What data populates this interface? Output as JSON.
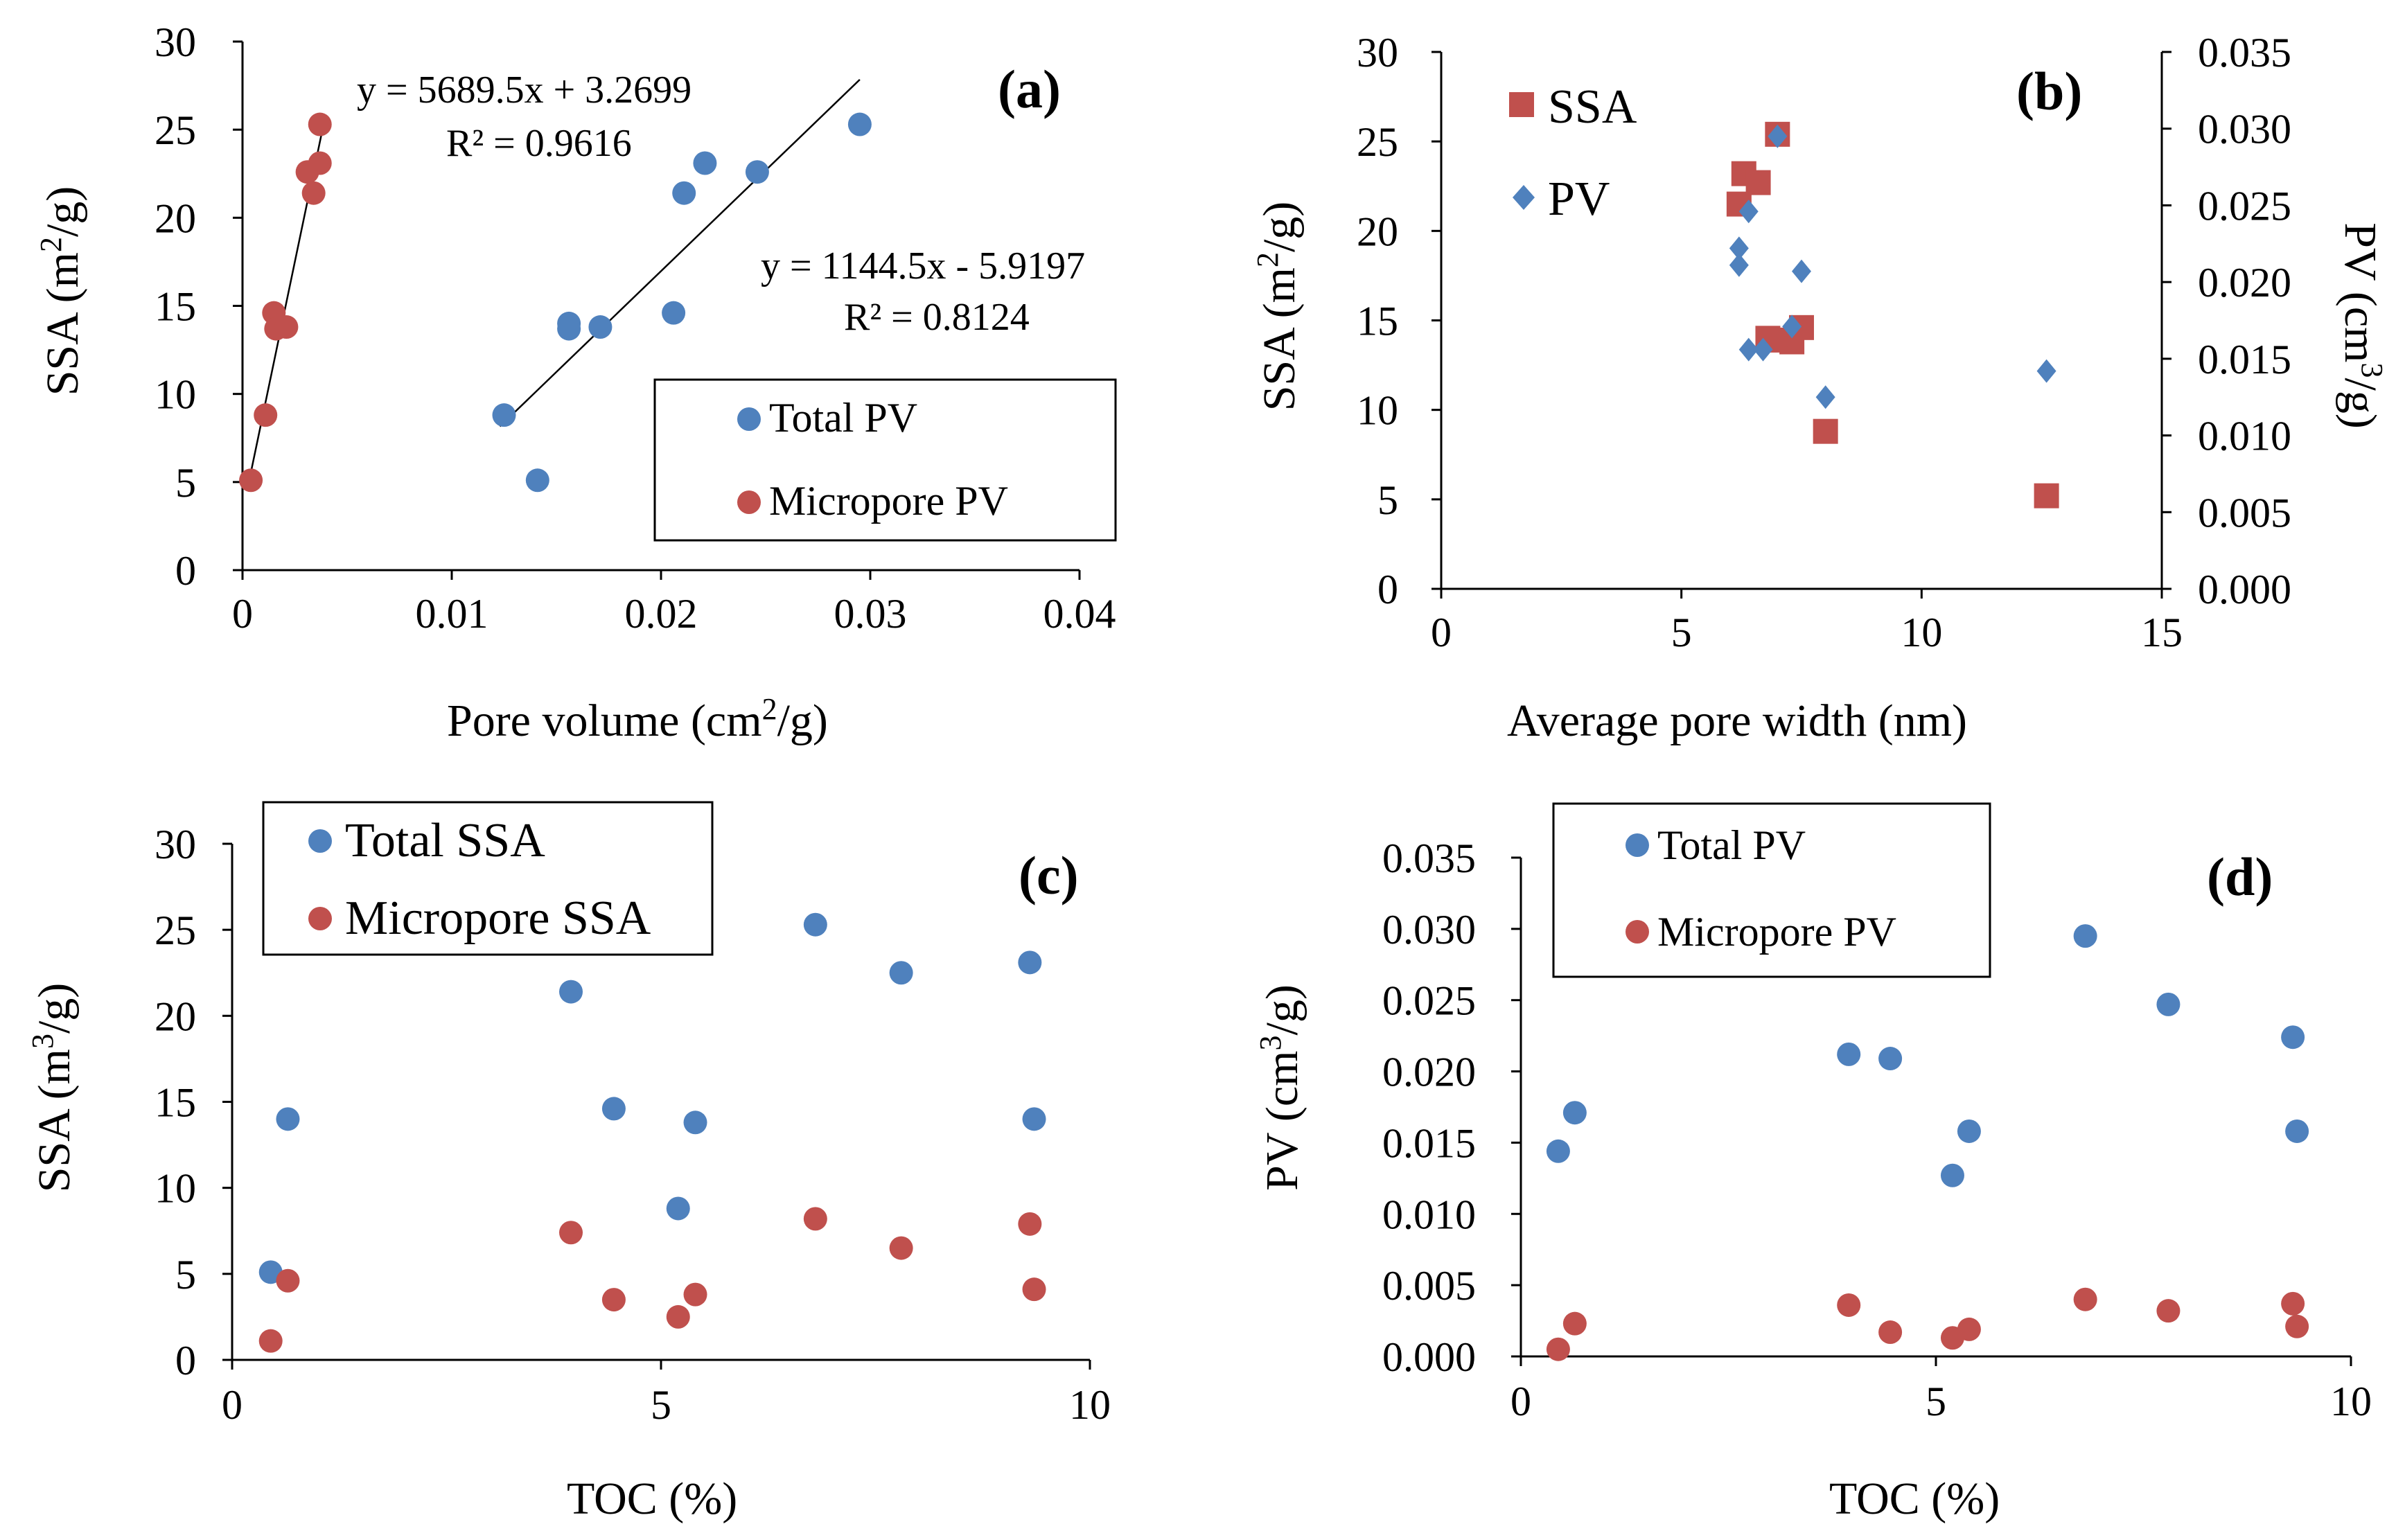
{
  "chart_data": [
    {
      "panel": "a",
      "type": "scatter",
      "panel_label": "(a)",
      "xlabel": "Pore volume  (cm",
      "xlabel_sup": "2",
      "xlabel_tail": "/g)",
      "ylabel": "SSA  (m",
      "ylabel_sup": "2",
      "ylabel_tail": "/g)",
      "xlim": [
        0,
        0.04
      ],
      "ylim": [
        0,
        30
      ],
      "xticks": [
        "0",
        "0.01",
        "0.02",
        "0.03",
        "0.04"
      ],
      "yticks": [
        "0",
        "5",
        "10",
        "15",
        "20",
        "25",
        "30"
      ],
      "series": [
        {
          "name": "Total PV",
          "color": "#4f81bd",
          "x": [
            0.0125,
            0.0141,
            0.0156,
            0.0156,
            0.0171,
            0.0206,
            0.0211,
            0.0221,
            0.0246,
            0.0295
          ],
          "y": [
            8.8,
            5.1,
            14.0,
            13.7,
            13.8,
            14.6,
            21.4,
            23.1,
            22.6,
            25.3
          ]
        },
        {
          "name": "Micropore PV",
          "color": "#c0504d",
          "x": [
            0.0004,
            0.0011,
            0.0015,
            0.0016,
            0.0021,
            0.0031,
            0.0034,
            0.0037,
            0.0037
          ],
          "y": [
            5.1,
            8.8,
            14.6,
            13.7,
            13.8,
            22.6,
            21.4,
            23.1,
            25.3
          ]
        }
      ],
      "trendlines": [
        {
          "series": "Micropore PV",
          "slope": 5689.5,
          "intercept": 3.2699,
          "x_range": [
            0.0003,
            0.0038
          ],
          "equation": "y = 5689.5x + 3.2699",
          "r2": "R² = 0.9616"
        },
        {
          "series": "Total PV",
          "slope": 1144.5,
          "intercept": -5.9197,
          "x_range": [
            0.0123,
            0.0295
          ],
          "equation": "y = 1144.5x - 5.9197",
          "r2": "R² = 0.8124"
        }
      ],
      "legend": [
        "Total PV",
        "Micropore PV"
      ]
    },
    {
      "panel": "b",
      "type": "scatter",
      "panel_label": "(b)",
      "xlabel": "Average  pore width (nm)",
      "ylabel": "SSA  (m",
      "ylabel_sup": "2",
      "ylabel_tail": "/g)",
      "y2label": "PV (cm",
      "y2label_sup": "3",
      "y2label_tail": "/g)",
      "xlim": [
        0,
        15
      ],
      "ylim": [
        0,
        30
      ],
      "y2lim": [
        0,
        0.035
      ],
      "xticks": [
        "0",
        "5",
        "10",
        "15"
      ],
      "yticks": [
        "0",
        "5",
        "10",
        "15",
        "20",
        "25",
        "30"
      ],
      "y2ticks": [
        "0.000",
        "0.005",
        "0.010",
        "0.015",
        "0.020",
        "0.025",
        "0.030",
        "0.035"
      ],
      "series": [
        {
          "name": "SSA",
          "axis": "left",
          "color": "#c0504d",
          "marker": "square",
          "x": [
            6.2,
            6.3,
            6.6,
            6.9,
            7.0,
            7.3,
            7.5,
            8.0,
            12.6,
            6.8
          ],
          "y": [
            21.5,
            23.2,
            22.7,
            13.9,
            25.4,
            13.8,
            14.6,
            8.8,
            5.2,
            14.0
          ]
        },
        {
          "name": "PV",
          "axis": "right",
          "color": "#4f81bd",
          "marker": "diamond",
          "x": [
            6.2,
            6.2,
            6.4,
            6.4,
            6.7,
            7.0,
            7.3,
            7.5,
            8.0,
            12.6
          ],
          "y": [
            0.0211,
            0.0222,
            0.0246,
            0.0156,
            0.0156,
            0.0295,
            0.0171,
            0.0207,
            0.0125,
            0.0142
          ]
        }
      ],
      "legend": [
        "SSA",
        "PV"
      ]
    },
    {
      "panel": "c",
      "type": "scatter",
      "panel_label": "(c)",
      "xlabel": "TOC (%)",
      "ylabel": "SSA  (m",
      "ylabel_sup": "3",
      "ylabel_tail": "/g)",
      "xlim": [
        0,
        10
      ],
      "ylim": [
        0,
        30
      ],
      "xticks": [
        "0",
        "5",
        "10"
      ],
      "yticks": [
        "0",
        "5",
        "10",
        "15",
        "20",
        "25",
        "30"
      ],
      "series": [
        {
          "name": "Total SSA",
          "color": "#4f81bd",
          "x": [
            0.45,
            0.65,
            3.95,
            4.45,
            5.2,
            5.4,
            6.8,
            7.8,
            9.3,
            9.35
          ],
          "y": [
            5.1,
            14.0,
            21.4,
            14.6,
            8.8,
            13.8,
            25.3,
            22.5,
            23.1,
            14.0
          ]
        },
        {
          "name": "Micropore SSA",
          "color": "#c0504d",
          "x": [
            0.45,
            0.65,
            3.95,
            4.45,
            5.2,
            5.4,
            6.8,
            7.8,
            9.3,
            9.35
          ],
          "y": [
            1.1,
            4.6,
            7.4,
            3.5,
            2.5,
            3.8,
            8.2,
            6.5,
            7.9,
            4.1
          ]
        }
      ],
      "legend": [
        "Total SSA",
        "Micropore SSA"
      ]
    },
    {
      "panel": "d",
      "type": "scatter",
      "panel_label": "(d)",
      "xlabel": "TOC (%)",
      "ylabel": "PV (cm",
      "ylabel_sup": "3",
      "ylabel_tail": "/g)",
      "xlim": [
        0,
        10
      ],
      "ylim": [
        0,
        0.035
      ],
      "xticks": [
        "0",
        "5",
        "10"
      ],
      "yticks": [
        "0.000",
        "0.005",
        "0.010",
        "0.015",
        "0.020",
        "0.025",
        "0.030",
        "0.035"
      ],
      "series": [
        {
          "name": "Total PV",
          "color": "#4f81bd",
          "x": [
            0.45,
            0.65,
            3.95,
            4.45,
            5.2,
            5.4,
            6.8,
            7.8,
            9.3,
            9.35
          ],
          "y": [
            0.0144,
            0.0171,
            0.0212,
            0.0209,
            0.0127,
            0.0158,
            0.0295,
            0.0247,
            0.0224,
            0.0158
          ]
        },
        {
          "name": "Micropore PV",
          "color": "#c0504d",
          "x": [
            0.45,
            0.65,
            3.95,
            4.45,
            5.2,
            5.4,
            6.8,
            7.8,
            9.3,
            9.35
          ],
          "y": [
            0.0005,
            0.0023,
            0.0036,
            0.0017,
            0.0013,
            0.0019,
            0.004,
            0.0032,
            0.0037,
            0.0021
          ]
        }
      ],
      "legend": [
        "Total PV",
        "Micropore PV"
      ]
    }
  ]
}
